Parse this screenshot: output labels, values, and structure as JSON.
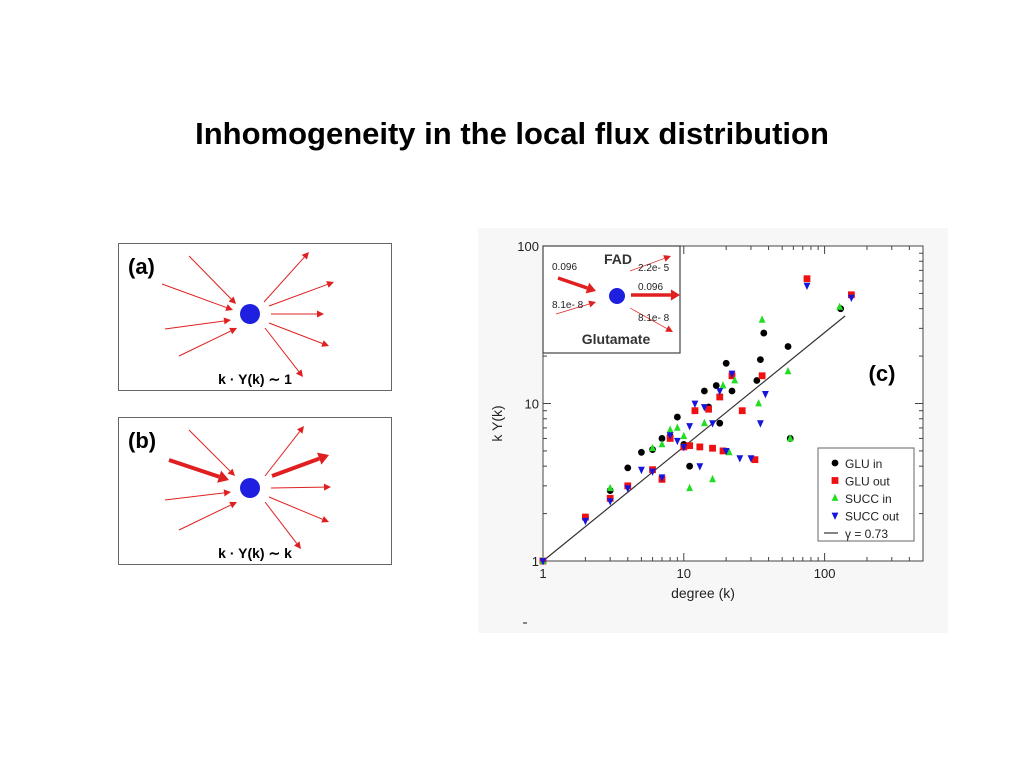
{
  "slide": {
    "title": "Inhomogeneity in the local flux distribution"
  },
  "panel_a": {
    "label": "(a)",
    "formula": "k · Y(k) ∼ 1",
    "node_color": "#1f1fe0",
    "arrow_color": "#e02020"
  },
  "panel_b": {
    "label": "(b)",
    "formula": "k · Y(k) ∼ k",
    "node_color": "#1f1fe0",
    "arrow_color": "#e02020"
  },
  "chart_data": {
    "type": "scatter",
    "panel_label": "(c)",
    "xlabel": "degree (k)",
    "ylabel": "k Y(k)",
    "x_scale": "log",
    "y_scale": "log",
    "xlim": [
      1,
      500
    ],
    "ylim": [
      1,
      100
    ],
    "x_ticks": [
      {
        "value": 1,
        "label": "1"
      },
      {
        "value": 10,
        "label": "10"
      },
      {
        "value": 100,
        "label": "100"
      }
    ],
    "y_ticks": [
      {
        "value": 1,
        "label": "1"
      },
      {
        "value": 10,
        "label": "10"
      },
      {
        "value": 100,
        "label": "100"
      }
    ],
    "legend_position": "bottom-right",
    "series": [
      {
        "name": "GLU in",
        "marker": "circle",
        "color": "#000000",
        "points": [
          [
            1,
            1
          ],
          [
            2,
            1.9
          ],
          [
            3,
            2.8
          ],
          [
            4,
            3.9
          ],
          [
            5,
            4.9
          ],
          [
            6,
            5.1
          ],
          [
            7,
            6
          ],
          [
            8,
            6.2
          ],
          [
            9,
            8.2
          ],
          [
            10,
            5.5
          ],
          [
            11,
            4
          ],
          [
            12,
            9
          ],
          [
            14,
            12
          ],
          [
            15,
            9.5
          ],
          [
            17,
            13
          ],
          [
            18,
            7.5
          ],
          [
            20,
            18
          ],
          [
            22,
            12
          ],
          [
            33,
            14
          ],
          [
            35,
            19
          ],
          [
            37,
            28
          ],
          [
            55,
            23
          ],
          [
            57,
            6
          ],
          [
            130,
            40
          ]
        ]
      },
      {
        "name": "GLU out",
        "marker": "square",
        "color": "#ee1111",
        "points": [
          [
            1,
            1
          ],
          [
            2,
            1.9
          ],
          [
            3,
            2.5
          ],
          [
            4,
            3
          ],
          [
            6,
            3.8
          ],
          [
            7,
            3.3
          ],
          [
            8,
            6
          ],
          [
            10,
            5.3
          ],
          [
            11,
            5.4
          ],
          [
            12,
            9
          ],
          [
            13,
            5.3
          ],
          [
            15,
            9.2
          ],
          [
            16,
            5.2
          ],
          [
            18,
            11
          ],
          [
            19,
            5
          ],
          [
            22,
            15
          ],
          [
            26,
            9
          ],
          [
            32,
            4.4
          ],
          [
            36,
            15
          ],
          [
            75,
            62
          ],
          [
            155,
            49
          ]
        ]
      },
      {
        "name": "SUCC in",
        "marker": "triangle-up",
        "color": "#22dd22",
        "points": [
          [
            1,
            1
          ],
          [
            3,
            2.9
          ],
          [
            6,
            5.2
          ],
          [
            7,
            5.5
          ],
          [
            8,
            6.8
          ],
          [
            9,
            7
          ],
          [
            10,
            6.2
          ],
          [
            11,
            2.9
          ],
          [
            14,
            7.5
          ],
          [
            16,
            3.3
          ],
          [
            19,
            13
          ],
          [
            21,
            4.9
          ],
          [
            23,
            14
          ],
          [
            34,
            10
          ],
          [
            36,
            34
          ],
          [
            55,
            16
          ],
          [
            57,
            6
          ],
          [
            128,
            41
          ]
        ]
      },
      {
        "name": "SUCC out",
        "marker": "triangle-down",
        "color": "#1515dd",
        "points": [
          [
            1,
            1
          ],
          [
            2,
            1.8
          ],
          [
            3,
            2.4
          ],
          [
            4,
            2.9
          ],
          [
            5,
            3.8
          ],
          [
            6,
            3.7
          ],
          [
            7,
            3.4
          ],
          [
            8,
            6.3
          ],
          [
            9,
            5.8
          ],
          [
            10,
            5.3
          ],
          [
            11,
            7.2
          ],
          [
            12,
            10
          ],
          [
            13,
            4
          ],
          [
            14,
            9.5
          ],
          [
            16,
            7.5
          ],
          [
            18,
            12
          ],
          [
            20,
            5
          ],
          [
            22,
            15.5
          ],
          [
            25,
            4.5
          ],
          [
            30,
            4.5
          ],
          [
            35,
            7.5
          ],
          [
            38,
            11.5
          ],
          [
            75,
            56
          ],
          [
            155,
            47
          ]
        ]
      }
    ],
    "fit_line": {
      "name": "γ = 0.73",
      "color": "#333333",
      "from": [
        1,
        1
      ],
      "to": [
        140,
        36
      ]
    },
    "inset": {
      "top_label": "FAD",
      "bottom_label": "Glutamate",
      "node_color": "#1f1fe0",
      "arrow_color": "#e02020",
      "values": {
        "in_top": "0.096",
        "in_bottom": "8.1e- 8",
        "out_top_right": "2.2e- 5",
        "out_mid_right": "0.096",
        "out_bottom_right": "8.1e- 8"
      }
    }
  }
}
